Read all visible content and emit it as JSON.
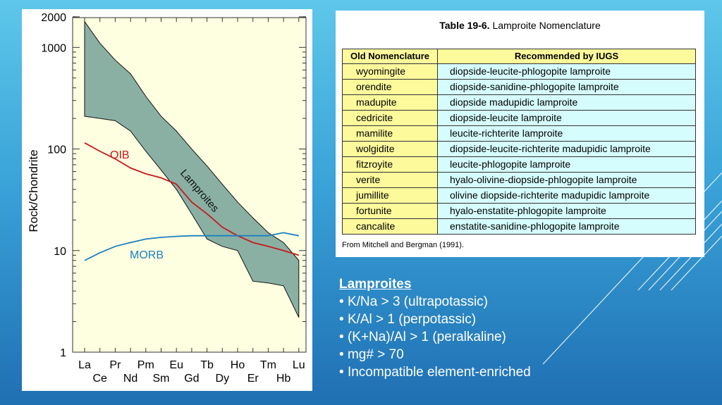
{
  "chart_data": {
    "type": "area",
    "title": "",
    "ylabel": "Rock/Chondrite",
    "xlabel": "",
    "yscale": "log",
    "ylim": [
      1,
      2000
    ],
    "ytick_labels": [
      "2000",
      "1000",
      "100",
      "10",
      "1"
    ],
    "ytick_values": [
      2000,
      1000,
      100,
      10,
      1
    ],
    "categories": [
      "La",
      "Ce",
      "Pr",
      "Nd",
      "Pm",
      "Sm",
      "Eu",
      "Gd",
      "Tb",
      "Dy",
      "Ho",
      "Er",
      "Tm",
      "Hb",
      "Lu"
    ],
    "series": [
      {
        "name": "Lamproites",
        "kind": "band",
        "color": "#8ab0a4",
        "x": [
          "La",
          "Ce",
          "Pr",
          "Nd",
          "Pm",
          "Sm",
          "Eu",
          "Gd",
          "Tb",
          "Dy",
          "Ho",
          "Er",
          "Tm",
          "Hb",
          "Lu"
        ],
        "upper": [
          1800,
          1100,
          750,
          550,
          330,
          210,
          150,
          100,
          68,
          45,
          30,
          21,
          15,
          12,
          8
        ],
        "lower": [
          210,
          200,
          190,
          150,
          95,
          62,
          40,
          23,
          13,
          11,
          10,
          5,
          4.8,
          4.5,
          2.2
        ]
      },
      {
        "name": "OIB",
        "kind": "line",
        "color": "#c8181e",
        "x": [
          "La",
          "Ce",
          "Pr",
          "Nd",
          "Pm",
          "Sm",
          "Eu",
          "Gd",
          "Tb",
          "Dy",
          "Ho",
          "Er",
          "Tm",
          "Hb",
          "Lu"
        ],
        "values": [
          115,
          95,
          80,
          65,
          57,
          52,
          45,
          30,
          23,
          17,
          14,
          12,
          11,
          10,
          9
        ]
      },
      {
        "name": "MORB",
        "kind": "line",
        "color": "#1c80c0",
        "x": [
          "La",
          "Ce",
          "Pr",
          "Nd",
          "Pm",
          "Sm",
          "Eu",
          "Gd",
          "Tb",
          "Dy",
          "Ho",
          "Er",
          "Tm",
          "Hb",
          "Lu"
        ],
        "values": [
          8,
          9.5,
          11,
          12,
          13,
          13.5,
          13.8,
          14,
          14,
          14,
          14,
          14,
          14,
          15,
          14
        ]
      }
    ],
    "annotations": [
      "Lamproites",
      "OIB",
      "MORB"
    ],
    "grid": false
  },
  "table": {
    "title_bold": "Table 19-6.",
    "title_rest": " Lamproite Nomenclature",
    "headers": [
      "Old Nomenclature",
      "Recommended by IUGS"
    ],
    "rows": [
      [
        "wyomingite",
        "diopside-leucite-phlogopite lamproite"
      ],
      [
        "orendite",
        "diopside-sanidine-phlogopite lamproite"
      ],
      [
        "madupite",
        "diopside madupidic lamproite"
      ],
      [
        "cedricite",
        "diopside-leucite lamproite"
      ],
      [
        "mamilite",
        "leucite-richterite lamproite"
      ],
      [
        "wolgidite",
        "diopside-leucite-richterite madupidic lamproite"
      ],
      [
        "fitzroyite",
        "leucite-phlogopite lamproite"
      ],
      [
        "verite",
        "hyalo-olivine-diopside-phlogopite lamproite"
      ],
      [
        "jumillite",
        "olivine diopside-richterite madupidic lamproite"
      ],
      [
        "fortunite",
        "hyalo-enstatite-phlogopite lamproite"
      ],
      [
        "cancalite",
        "enstatite-sanidine-phlogopite lamproite"
      ]
    ],
    "source": "From Mitchell and Bergman (1991)."
  },
  "bullets": {
    "heading": "Lamproites",
    "items": [
      "K/Na > 3 (ultrapotassic)",
      "K/Al > 1 (perpotassic)",
      "(K+Na)/Al > 1 (peralkaline)",
      "mg# > 70",
      "Incompatible element-enriched"
    ]
  },
  "colors": {
    "plot_background": "#fefee0",
    "table_old_bg": "#fdfa9c",
    "table_rec_bg": "#d6fdfd",
    "slide_gradient_top": "#5ec7ea",
    "slide_gradient_bottom": "#1f6fb3"
  }
}
